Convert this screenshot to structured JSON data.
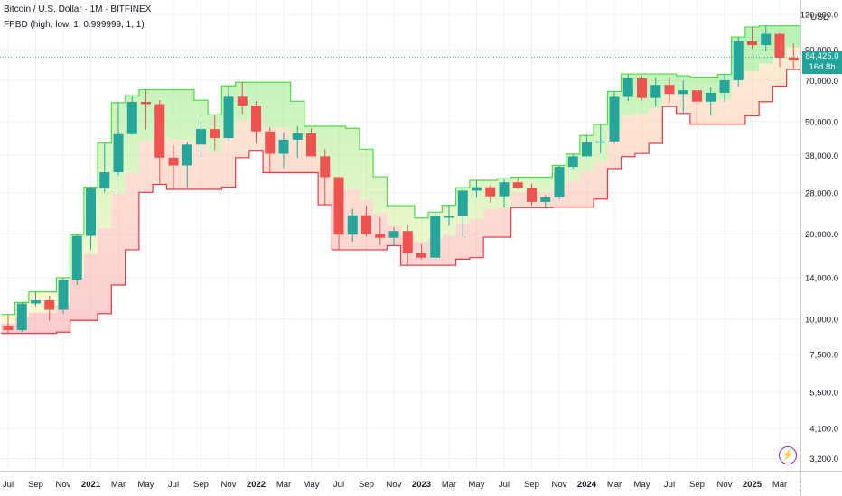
{
  "header": {
    "title": "Bitcoin / U.S. Dollar · 1M · BITFINEX",
    "indicator": "FPBD (high, low, 1, 0.999999, 1, 1)"
  },
  "price_axis": {
    "currency": "USD",
    "last_price": "84,425.0",
    "countdown": "16d 8h"
  },
  "colors": {
    "up": "#26a69a",
    "down": "#ef5350",
    "upper_band": "#4cdc45",
    "lower_band": "#f23645",
    "last_line": "#22a39a"
  },
  "chart_data": {
    "type": "candlestick",
    "y_scale": "log",
    "ylim": [
      2900,
      135000
    ],
    "x_tick_labels": [
      "Jul",
      "Sep",
      "Nov",
      "2021",
      "Mar",
      "May",
      "Jul",
      "Sep",
      "Nov",
      "2022",
      "Mar",
      "May",
      "Jul",
      "Sep",
      "Nov",
      "2023",
      "Mar",
      "May",
      "Jul",
      "Sep",
      "Nov",
      "2024",
      "Mar",
      "May",
      "Jul",
      "Sep",
      "Nov",
      "2025",
      "Mar",
      "May"
    ],
    "y_tick_labels": [
      {
        "value": 120000,
        "label": "120,000.0"
      },
      {
        "value": 90000,
        "label": "90,000.0"
      },
      {
        "value": 70000,
        "label": "70,000.0"
      },
      {
        "value": 50000,
        "label": "50,000.0"
      },
      {
        "value": 38000,
        "label": "38,000.0"
      },
      {
        "value": 28000,
        "label": "28,000.0"
      },
      {
        "value": 20000,
        "label": "20,000.0"
      },
      {
        "value": 14000,
        "label": "14,000.0"
      },
      {
        "value": 10000,
        "label": "10,000.0"
      },
      {
        "value": 7500,
        "label": "7,500.0"
      },
      {
        "value": 5500,
        "label": "5,500.0"
      },
      {
        "value": 4100,
        "label": "4,100.0"
      },
      {
        "value": 3200,
        "label": "3,200.0"
      }
    ],
    "last_value": 84425,
    "candles": [
      {
        "t": "2020-06",
        "o": 9450,
        "h": 10380,
        "l": 8900,
        "c": 9140
      },
      {
        "t": "2020-07",
        "o": 9140,
        "h": 11450,
        "l": 8990,
        "c": 11350
      },
      {
        "t": "2020-08",
        "o": 11350,
        "h": 12480,
        "l": 11100,
        "c": 11650
      },
      {
        "t": "2020-09",
        "o": 11650,
        "h": 12100,
        "l": 9890,
        "c": 10780
      },
      {
        "t": "2020-10",
        "o": 10780,
        "h": 14000,
        "l": 10450,
        "c": 13800
      },
      {
        "t": "2020-11",
        "o": 13800,
        "h": 19900,
        "l": 13200,
        "c": 19700
      },
      {
        "t": "2020-12",
        "o": 19700,
        "h": 29300,
        "l": 17600,
        "c": 29000
      },
      {
        "t": "2021-01",
        "o": 29000,
        "h": 42000,
        "l": 28100,
        "c": 33100
      },
      {
        "t": "2021-02",
        "o": 33100,
        "h": 58400,
        "l": 32300,
        "c": 45200
      },
      {
        "t": "2021-03",
        "o": 45200,
        "h": 61800,
        "l": 45000,
        "c": 58800
      },
      {
        "t": "2021-04",
        "o": 58800,
        "h": 64900,
        "l": 47000,
        "c": 57700
      },
      {
        "t": "2021-05",
        "o": 57700,
        "h": 59600,
        "l": 30000,
        "c": 37300
      },
      {
        "t": "2021-06",
        "o": 37300,
        "h": 41300,
        "l": 28800,
        "c": 35000
      },
      {
        "t": "2021-07",
        "o": 35000,
        "h": 42400,
        "l": 29300,
        "c": 41500
      },
      {
        "t": "2021-08",
        "o": 41500,
        "h": 50500,
        "l": 37300,
        "c": 47100
      },
      {
        "t": "2021-09",
        "o": 47100,
        "h": 52900,
        "l": 39600,
        "c": 43800
      },
      {
        "t": "2021-10",
        "o": 43800,
        "h": 67000,
        "l": 43300,
        "c": 61300
      },
      {
        "t": "2021-11",
        "o": 61300,
        "h": 69000,
        "l": 53200,
        "c": 57000
      },
      {
        "t": "2021-12",
        "o": 57000,
        "h": 59100,
        "l": 42000,
        "c": 46200
      },
      {
        "t": "2022-01",
        "o": 46200,
        "h": 47900,
        "l": 33000,
        "c": 38500
      },
      {
        "t": "2022-02",
        "o": 38500,
        "h": 45800,
        "l": 34300,
        "c": 43200
      },
      {
        "t": "2022-03",
        "o": 43200,
        "h": 48200,
        "l": 37200,
        "c": 45500
      },
      {
        "t": "2022-04",
        "o": 45500,
        "h": 47400,
        "l": 37600,
        "c": 37700
      },
      {
        "t": "2022-05",
        "o": 37700,
        "h": 40000,
        "l": 25400,
        "c": 31800
      },
      {
        "t": "2022-06",
        "o": 31800,
        "h": 31900,
        "l": 17600,
        "c": 19900
      },
      {
        "t": "2022-07",
        "o": 19900,
        "h": 24600,
        "l": 18800,
        "c": 23300
      },
      {
        "t": "2022-08",
        "o": 23300,
        "h": 25200,
        "l": 19600,
        "c": 20000
      },
      {
        "t": "2022-09",
        "o": 20000,
        "h": 22800,
        "l": 18200,
        "c": 19400
      },
      {
        "t": "2022-10",
        "o": 19400,
        "h": 21100,
        "l": 18200,
        "c": 20500
      },
      {
        "t": "2022-11",
        "o": 20500,
        "h": 21500,
        "l": 15500,
        "c": 17200
      },
      {
        "t": "2022-12",
        "o": 17200,
        "h": 18400,
        "l": 16300,
        "c": 16500
      },
      {
        "t": "2023-01",
        "o": 16500,
        "h": 23900,
        "l": 16500,
        "c": 23100
      },
      {
        "t": "2023-02",
        "o": 23100,
        "h": 25300,
        "l": 21400,
        "c": 23100
      },
      {
        "t": "2023-03",
        "o": 23100,
        "h": 29200,
        "l": 19500,
        "c": 28500
      },
      {
        "t": "2023-04",
        "o": 28500,
        "h": 31000,
        "l": 26900,
        "c": 29300
      },
      {
        "t": "2023-05",
        "o": 29300,
        "h": 29800,
        "l": 25800,
        "c": 27200
      },
      {
        "t": "2023-06",
        "o": 27200,
        "h": 31400,
        "l": 24800,
        "c": 30500
      },
      {
        "t": "2023-07",
        "o": 30500,
        "h": 31800,
        "l": 28900,
        "c": 29200
      },
      {
        "t": "2023-08",
        "o": 29200,
        "h": 30200,
        "l": 25200,
        "c": 26000
      },
      {
        "t": "2023-09",
        "o": 26000,
        "h": 27500,
        "l": 24900,
        "c": 27000
      },
      {
        "t": "2023-10",
        "o": 27000,
        "h": 35000,
        "l": 26600,
        "c": 34600
      },
      {
        "t": "2023-11",
        "o": 34600,
        "h": 38400,
        "l": 34100,
        "c": 37700
      },
      {
        "t": "2023-12",
        "o": 37700,
        "h": 44700,
        "l": 37600,
        "c": 42300
      },
      {
        "t": "2024-01",
        "o": 42300,
        "h": 48900,
        "l": 38600,
        "c": 42600
      },
      {
        "t": "2024-02",
        "o": 42600,
        "h": 64000,
        "l": 41900,
        "c": 61200
      },
      {
        "t": "2024-03",
        "o": 61200,
        "h": 73800,
        "l": 59100,
        "c": 71300
      },
      {
        "t": "2024-04",
        "o": 71300,
        "h": 72700,
        "l": 59600,
        "c": 60700
      },
      {
        "t": "2024-05",
        "o": 60700,
        "h": 71900,
        "l": 56600,
        "c": 67500
      },
      {
        "t": "2024-06",
        "o": 67500,
        "h": 71900,
        "l": 58500,
        "c": 62700
      },
      {
        "t": "2024-07",
        "o": 62700,
        "h": 70000,
        "l": 53500,
        "c": 64600
      },
      {
        "t": "2024-08",
        "o": 64600,
        "h": 65600,
        "l": 49000,
        "c": 58900
      },
      {
        "t": "2024-09",
        "o": 58900,
        "h": 66500,
        "l": 52500,
        "c": 63300
      },
      {
        "t": "2024-10",
        "o": 63300,
        "h": 73600,
        "l": 58900,
        "c": 70200
      },
      {
        "t": "2024-11",
        "o": 70200,
        "h": 99800,
        "l": 66800,
        "c": 96400
      },
      {
        "t": "2024-12",
        "o": 96400,
        "h": 108300,
        "l": 90500,
        "c": 93400
      },
      {
        "t": "2025-01",
        "o": 93400,
        "h": 109300,
        "l": 89200,
        "c": 102400
      },
      {
        "t": "2025-02",
        "o": 102400,
        "h": 102700,
        "l": 78200,
        "c": 84300
      },
      {
        "t": "2025-03",
        "o": 84300,
        "h": 95000,
        "l": 76600,
        "c": 82500
      },
      {
        "t": "2025-04",
        "o": 82500,
        "h": 86500,
        "l": 74500,
        "c": 84425
      }
    ]
  }
}
